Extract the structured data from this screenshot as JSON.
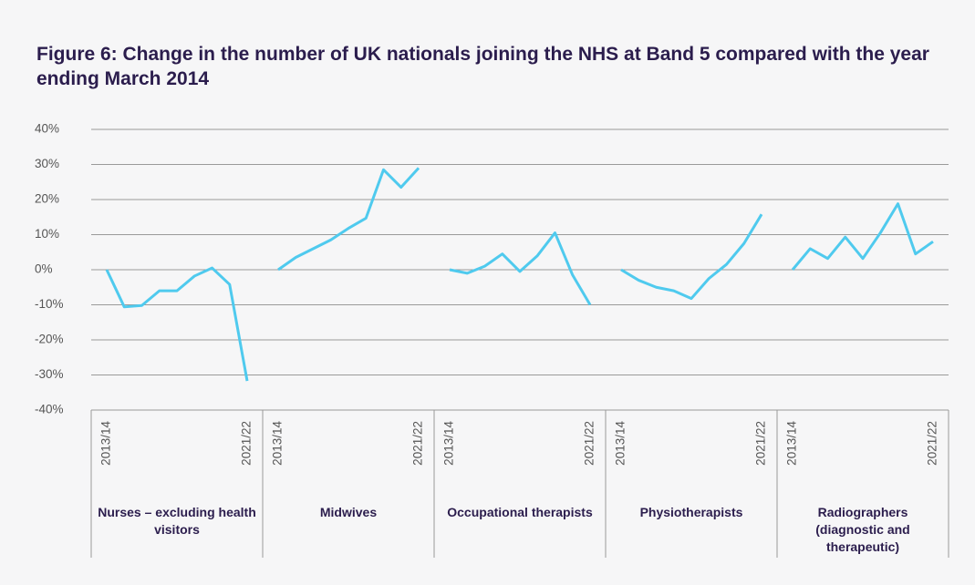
{
  "chart_data": {
    "type": "line",
    "title": "Figure 6: Change in the number of UK nationals joining the NHS at Band 5 compared with the year ending March 2014",
    "color": "#4fcaee",
    "ylim": [
      -40,
      40
    ],
    "yticks": [
      {
        "value": 40,
        "label": "40%"
      },
      {
        "value": 30,
        "label": "30%"
      },
      {
        "value": 20,
        "label": "20%"
      },
      {
        "value": 10,
        "label": "10%"
      },
      {
        "value": 0,
        "label": "0%"
      },
      {
        "value": -10,
        "label": "-10%"
      },
      {
        "value": -20,
        "label": "-20%"
      },
      {
        "value": -30,
        "label": "-30%"
      },
      {
        "value": -40,
        "label": "-40%"
      }
    ],
    "grid": true,
    "panels": [
      {
        "name": "Nurses – excluding health visitors",
        "categories": [
          "2013/14",
          null,
          null,
          null,
          null,
          null,
          null,
          null,
          "2021/22"
        ],
        "values": [
          0,
          -10.6,
          -10.2,
          -6,
          -6,
          -1.8,
          0.5,
          -4.2,
          -31.7
        ]
      },
      {
        "name": "Midwives",
        "categories": [
          "2013/14",
          null,
          null,
          null,
          null,
          null,
          null,
          null,
          "2021/22"
        ],
        "values": [
          0,
          3.5,
          6,
          8.5,
          11.8,
          14.7,
          28.5,
          23.5,
          29
        ]
      },
      {
        "name": "Occupational therapists",
        "categories": [
          "2013/14",
          null,
          null,
          null,
          null,
          null,
          null,
          null,
          "2021/22"
        ],
        "values": [
          0,
          -1,
          1,
          4.5,
          -0.5,
          4,
          10.5,
          -1.5,
          -10
        ]
      },
      {
        "name": "Physiotherapists",
        "categories": [
          "2013/14",
          null,
          null,
          null,
          null,
          null,
          null,
          null,
          "2021/22"
        ],
        "values": [
          0,
          -3,
          -5,
          -6,
          -8.2,
          -2.5,
          1.5,
          7.5,
          15.8
        ]
      },
      {
        "name": "Radiographers (diagnostic and therapeutic)",
        "categories": [
          "2013/14",
          null,
          null,
          null,
          null,
          null,
          null,
          null,
          "2021/22"
        ],
        "values": [
          0,
          6,
          3.2,
          9.3,
          3.2,
          10.5,
          18.8,
          4.5,
          8
        ]
      }
    ]
  }
}
